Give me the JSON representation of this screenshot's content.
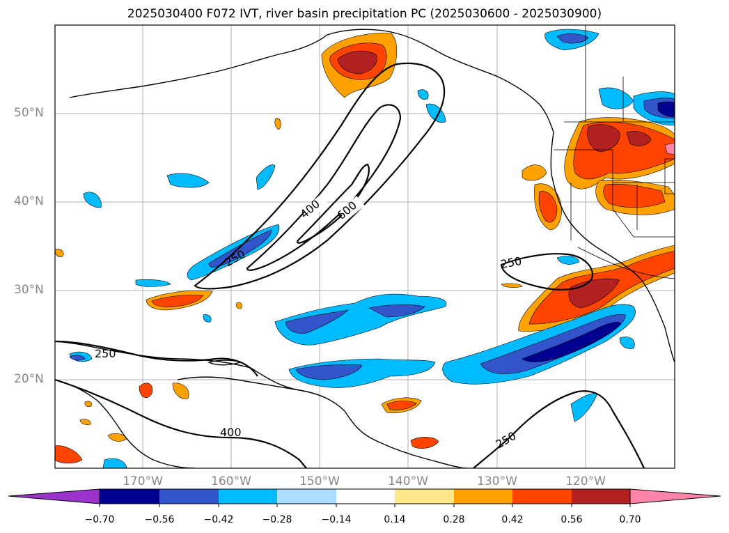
{
  "title": "2025030400 F072 IVT, river basin precipitation PC (2025030600 - 2025030900)",
  "lat_labels": [
    "50°N",
    "40°N",
    "30°N",
    "20°N"
  ],
  "lon_labels": [
    "170°W",
    "160°W",
    "150°W",
    "140°W",
    "130°W",
    "120°W"
  ],
  "contour_labels": [
    "400",
    "600",
    "250",
    "250",
    "250",
    "400",
    "250"
  ],
  "colorbar": {
    "ticks": [
      "−0.70",
      "−0.56",
      "−0.42",
      "−0.28",
      "−0.14",
      "0.14",
      "0.28",
      "0.42",
      "0.56",
      "0.70"
    ],
    "colors": [
      "#9933cc",
      "#000090",
      "#3355cc",
      "#00bbff",
      "#aaddff",
      "#ffffff",
      "#ffe88a",
      "#ffa200",
      "#ff4400",
      "#b22222",
      "#ff85a8"
    ]
  }
}
